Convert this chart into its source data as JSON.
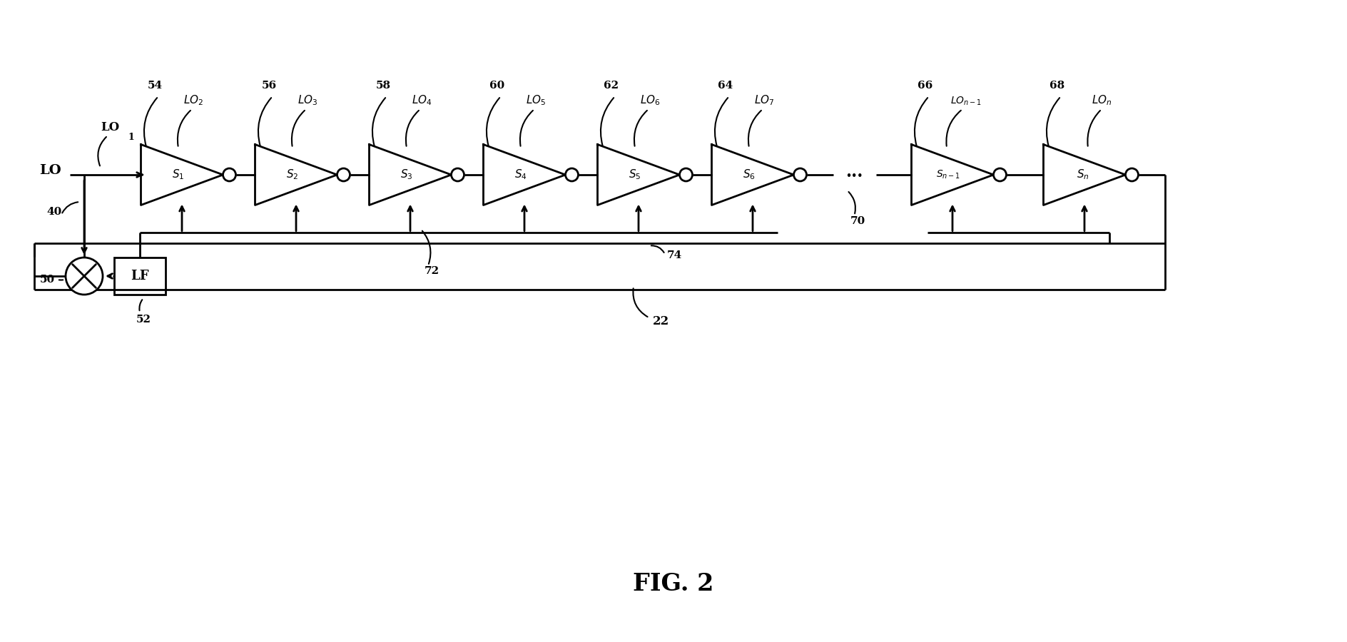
{
  "bg_color": "#ffffff",
  "line_color": "#000000",
  "fig_label": "FIG. 2",
  "stages": [
    "S_1",
    "S_2",
    "S_3",
    "S_4",
    "S_5",
    "S_6",
    "S_{n-1}",
    "S_n"
  ],
  "ref_nums": [
    "54",
    "56",
    "58",
    "60",
    "62",
    "64",
    "66",
    "68"
  ],
  "lo_subs": [
    "2",
    "3",
    "4",
    "5",
    "6",
    "7",
    "n-1",
    "n"
  ],
  "lo1_label": "LO",
  "lo1_sub": "1",
  "lo_input": "LO",
  "lf_label": "LF",
  "ref_40": "40",
  "ref_50": "50",
  "ref_52": "52",
  "ref_70": "70",
  "ref_72": "72",
  "ref_74": "74",
  "ref_22": "22"
}
